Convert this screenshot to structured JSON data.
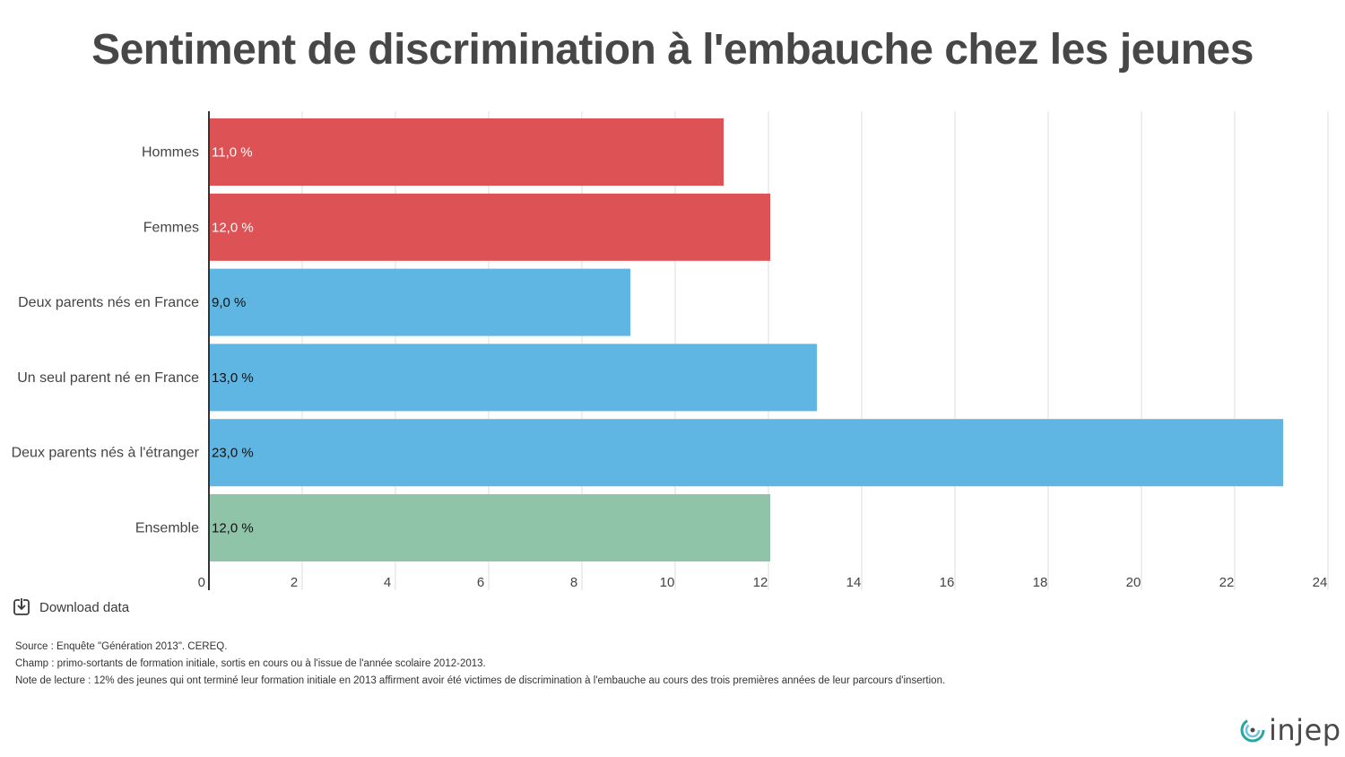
{
  "title": "Sentiment de discrimination à l'embauche chez les jeunes",
  "chart_data": {
    "type": "bar",
    "orientation": "horizontal",
    "title": "Sentiment de discrimination à l'embauche chez les jeunes",
    "categories": [
      "Hommes",
      "Femmes",
      "Deux parents nés en France",
      "Un seul parent né en France",
      "Deux parents nés à l'étranger",
      "Ensemble"
    ],
    "values": [
      11.0,
      12.0,
      9.0,
      13.0,
      23.0,
      12.0
    ],
    "data_labels": [
      "11,0 %",
      "12,0 %",
      "9,0 %",
      "13,0 %",
      "23,0 %",
      "12,0 %"
    ],
    "bar_colors": [
      "#dd5355",
      "#dd5355",
      "#5fb6e3",
      "#5fb6e3",
      "#5fb6e3",
      "#8fc4a8"
    ],
    "label_colors": [
      "#ffffff",
      "#ffffff",
      "#111111",
      "#111111",
      "#111111",
      "#111111"
    ],
    "xlim": [
      0,
      24
    ],
    "x_ticks": [
      "0",
      "2",
      "4",
      "6",
      "8",
      "10",
      "12",
      "14",
      "16",
      "18",
      "20",
      "22",
      "24"
    ],
    "xlabel": "",
    "ylabel": "",
    "grid": true,
    "legend": "none"
  },
  "download_label": "Download data",
  "download_icon": "download-icon",
  "notes": {
    "source": "Source : Enquête \"Génération 2013\". CEREQ.",
    "champ": "Champ : primo-sortants de formation initiale, sortis en cours ou à l'issue de l'année scolaire 2012-2013.",
    "lecture": "Note de lecture : 12% des jeunes qui ont terminé leur formation initiale en 2013 affirment avoir été victimes de discrimination à l'embauche au cours des trois premières années de leur parcours d'insertion."
  },
  "logo_text": "injep"
}
